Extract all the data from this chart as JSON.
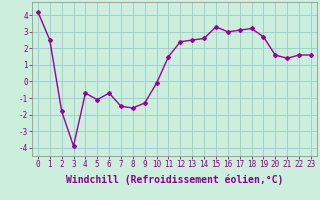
{
  "x": [
    0,
    1,
    2,
    3,
    4,
    5,
    6,
    7,
    8,
    9,
    10,
    11,
    12,
    13,
    14,
    15,
    16,
    17,
    18,
    19,
    20,
    21,
    22,
    23
  ],
  "y": [
    4.2,
    2.5,
    -1.8,
    -3.9,
    -0.7,
    -1.1,
    -0.7,
    -1.5,
    -1.6,
    -1.3,
    -0.1,
    1.5,
    2.4,
    2.5,
    2.6,
    3.3,
    3.0,
    3.1,
    3.2,
    2.7,
    1.6,
    1.4,
    1.6,
    1.6
  ],
  "line_color": "#990099",
  "marker": "D",
  "markersize": 2.0,
  "linewidth": 1.0,
  "xlabel": "Windchill (Refroidissement éolien,°C)",
  "xlabel_fontsize": 7,
  "xlabel_fontfamily": "monospace",
  "xlabel_fontweight": "bold",
  "ylabel_ticks": [
    -4,
    -3,
    -2,
    -1,
    0,
    1,
    2,
    3,
    4
  ],
  "xtick_labels": [
    "0",
    "1",
    "2",
    "3",
    "4",
    "5",
    "6",
    "7",
    "8",
    "9",
    "10",
    "11",
    "12",
    "13",
    "14",
    "15",
    "16",
    "17",
    "18",
    "19",
    "20",
    "21",
    "22",
    "23"
  ],
  "ylim": [
    -4.5,
    4.8
  ],
  "xlim": [
    -0.5,
    23.5
  ],
  "bg_color": "#cceedd",
  "grid_color": "#99cccc",
  "tick_fontsize": 5.5,
  "tick_fontfamily": "monospace"
}
